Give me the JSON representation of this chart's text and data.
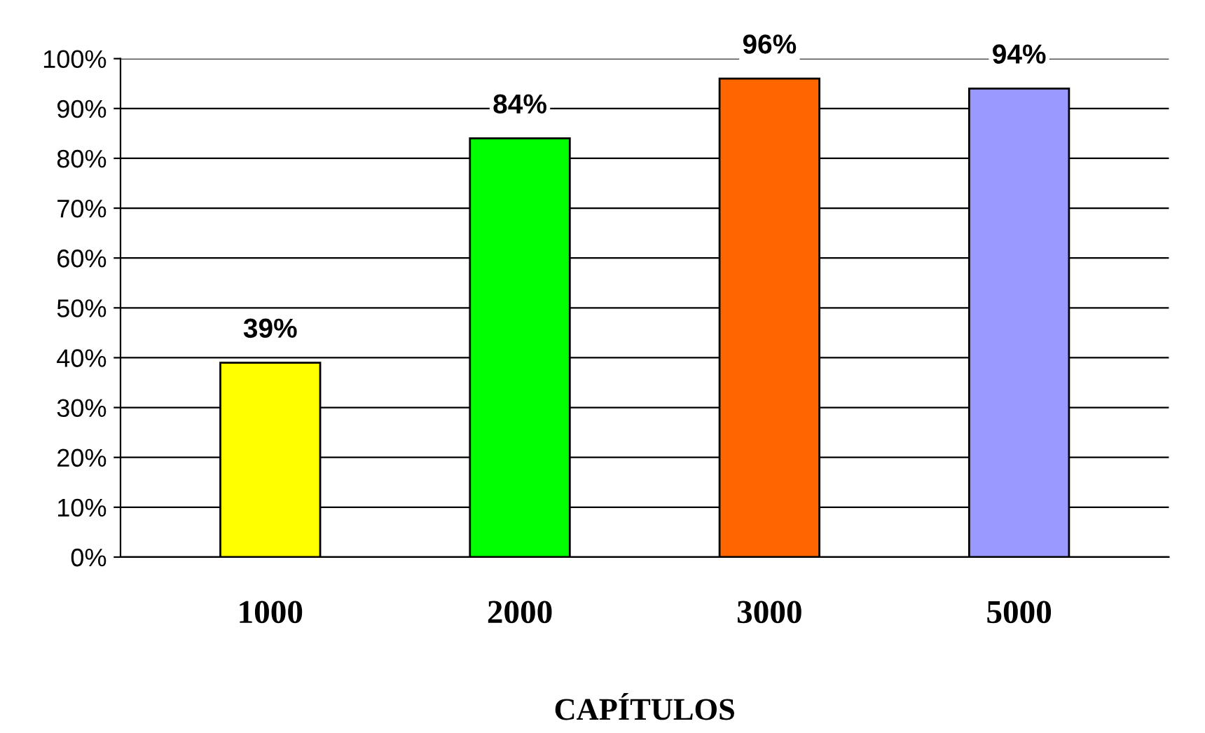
{
  "chart_data": {
    "type": "bar",
    "xlabel": "CAPÍTULOS",
    "categories": [
      "1000",
      "2000",
      "3000",
      "5000"
    ],
    "values": [
      39,
      84,
      96,
      94
    ],
    "colors": [
      "#ffff00",
      "#00ff00",
      "#ff6600",
      "#9999ff"
    ],
    "value_labels": [
      "39%",
      "84%",
      "96%",
      "94%"
    ],
    "ylim": [
      0,
      100
    ],
    "yticks": [
      {
        "value": 0,
        "label": "0%"
      },
      {
        "value": 10,
        "label": "10%"
      },
      {
        "value": 20,
        "label": "20%"
      },
      {
        "value": 30,
        "label": "30%"
      },
      {
        "value": 40,
        "label": "40%"
      },
      {
        "value": 50,
        "label": "50%"
      },
      {
        "value": 60,
        "label": "60%"
      },
      {
        "value": 70,
        "label": "70%"
      },
      {
        "value": 80,
        "label": "80%"
      },
      {
        "value": 90,
        "label": "90%"
      },
      {
        "value": 100,
        "label": "100%"
      }
    ],
    "grid": "y"
  }
}
